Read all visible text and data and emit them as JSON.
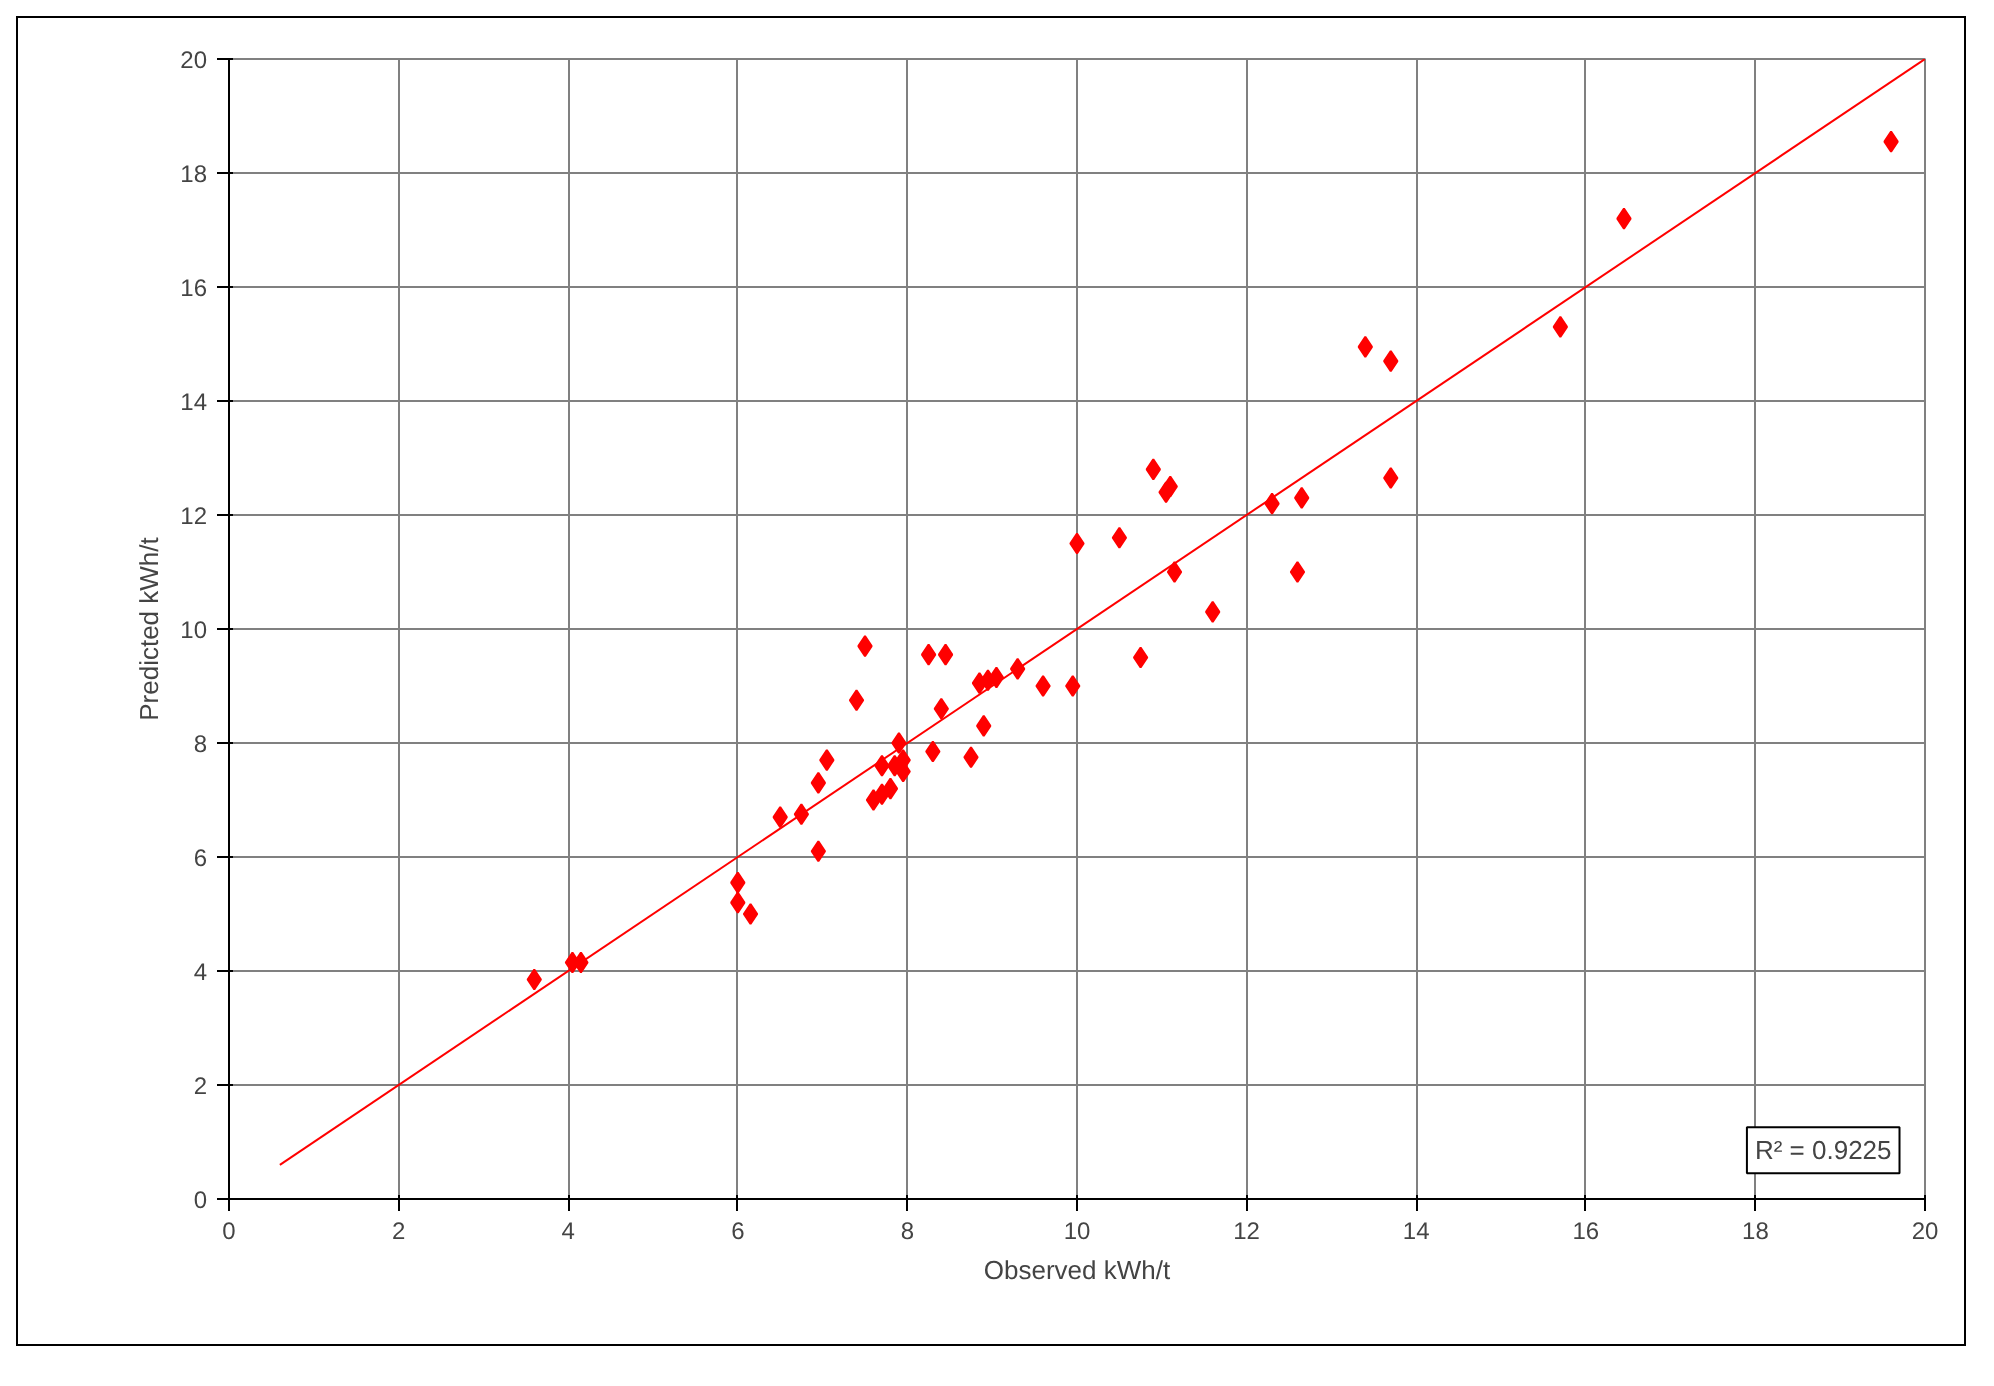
{
  "chart_data": {
    "type": "scatter",
    "xlabel": "Observed kWh/t",
    "ylabel": "Predicted kWh/t",
    "xlim": [
      0,
      20
    ],
    "ylim": [
      0,
      20
    ],
    "xticks": [
      0,
      2,
      4,
      6,
      8,
      10,
      12,
      14,
      16,
      18,
      20
    ],
    "yticks": [
      0,
      2,
      4,
      6,
      8,
      10,
      12,
      14,
      16,
      18,
      20
    ],
    "grid": true,
    "marker": "diamond",
    "annotations": [
      "R² = 0.9225"
    ],
    "series": [
      {
        "color": "#ff0000",
        "x": [
          3.6,
          4.05,
          4.15,
          6.0,
          6.0,
          6.15,
          6.5,
          6.75,
          6.95,
          6.95,
          7.05,
          7.4,
          7.5,
          7.6,
          7.7,
          7.7,
          7.8,
          7.85,
          7.9,
          7.95,
          7.95,
          8.25,
          8.3,
          8.4,
          8.45,
          8.75,
          8.85,
          8.9,
          8.95,
          9.05,
          9.3,
          9.6,
          9.95,
          10.0,
          10.5,
          10.75,
          10.9,
          11.05,
          11.1,
          11.15,
          11.6,
          12.3,
          12.6,
          12.65,
          13.4,
          13.7,
          13.7,
          15.7,
          16.45,
          19.6
        ],
        "values": [
          3.85,
          4.15,
          4.15,
          5.55,
          5.2,
          5.0,
          6.7,
          6.75,
          6.1,
          7.3,
          7.7,
          8.75,
          9.7,
          7.0,
          7.1,
          7.6,
          7.2,
          7.6,
          8.0,
          7.7,
          7.5,
          9.55,
          7.85,
          8.6,
          9.55,
          7.75,
          9.05,
          8.3,
          9.1,
          9.15,
          9.3,
          9.0,
          9.0,
          11.5,
          11.6,
          9.5,
          12.8,
          12.4,
          12.5,
          11.0,
          10.3,
          12.2,
          11.0,
          12.3,
          14.95,
          14.7,
          12.65,
          15.3,
          17.2,
          18.55
        ]
      },
      {
        "type": "line",
        "color": "#ff0000",
        "marker": "none",
        "x": [
          0.6,
          20
        ],
        "values": [
          0.6,
          20
        ]
      }
    ]
  }
}
